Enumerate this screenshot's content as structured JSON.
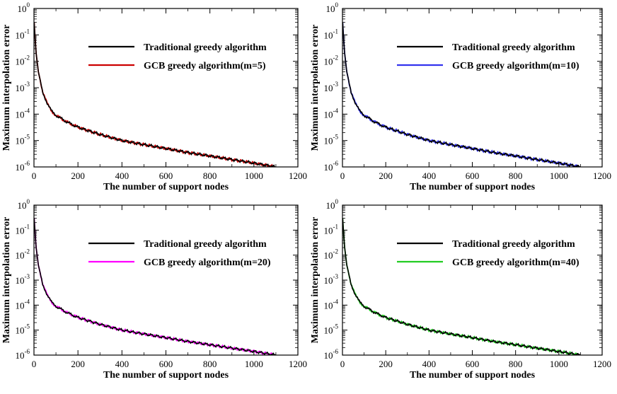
{
  "chart_data": [
    {
      "type": "line",
      "xlabel": "The number of support nodes",
      "ylabel": "Maximum interpolation error",
      "xlim": [
        0,
        1200
      ],
      "ylim": [
        1e-06,
        1
      ],
      "yscale": "log",
      "xticks": [
        0,
        200,
        400,
        600,
        800,
        1000,
        1200
      ],
      "yticks": [
        {
          "base": "10",
          "exp": "0"
        },
        {
          "base": "10",
          "exp": "-1"
        },
        {
          "base": "10",
          "exp": "-2"
        },
        {
          "base": "10",
          "exp": "-3"
        },
        {
          "base": "10",
          "exp": "-4"
        },
        {
          "base": "10",
          "exp": "-5"
        },
        {
          "base": "10",
          "exp": "-6"
        }
      ],
      "legend_position": "top-right",
      "series": [
        {
          "name": "Traditional greedy algorithm",
          "color": "#000000",
          "x": [
            1,
            5,
            10,
            20,
            40,
            60,
            80,
            100,
            150,
            200,
            300,
            400,
            500,
            600,
            700,
            800,
            900,
            1000,
            1100
          ],
          "y": [
            0.3,
            0.08,
            0.02,
            0.004,
            0.0007,
            0.00025,
            0.00013,
            9e-05,
            5e-05,
            3.2e-05,
            1.7e-05,
            1e-05,
            7e-06,
            5e-06,
            3.5e-06,
            2.6e-06,
            1.9e-06,
            1.4e-06,
            1e-06
          ]
        },
        {
          "name": "GCB greedy algorithm(m=5)",
          "color": "#cc0000",
          "x": [
            1,
            5,
            10,
            20,
            40,
            60,
            80,
            100,
            150,
            200,
            300,
            400,
            500,
            600,
            700,
            800,
            900,
            1000,
            1100
          ],
          "y": [
            0.3,
            0.08,
            0.02,
            0.004,
            0.0007,
            0.00025,
            0.00013,
            9e-05,
            5e-05,
            3.2e-05,
            1.7e-05,
            1e-05,
            7e-06,
            5e-06,
            3.5e-06,
            2.6e-06,
            1.9e-06,
            1.4e-06,
            1e-06
          ]
        }
      ]
    },
    {
      "type": "line",
      "xlabel": "The number of support nodes",
      "ylabel": "Maximum interpolation error",
      "xlim": [
        0,
        1200
      ],
      "ylim": [
        1e-06,
        1
      ],
      "yscale": "log",
      "xticks": [
        0,
        200,
        400,
        600,
        800,
        1000,
        1200
      ],
      "yticks": [
        {
          "base": "10",
          "exp": "0"
        },
        {
          "base": "10",
          "exp": "-1"
        },
        {
          "base": "10",
          "exp": "-2"
        },
        {
          "base": "10",
          "exp": "-3"
        },
        {
          "base": "10",
          "exp": "-4"
        },
        {
          "base": "10",
          "exp": "-5"
        },
        {
          "base": "10",
          "exp": "-6"
        }
      ],
      "legend_position": "top-right",
      "series": [
        {
          "name": "Traditional greedy algorithm",
          "color": "#000000",
          "x": [
            1,
            5,
            10,
            20,
            40,
            60,
            80,
            100,
            150,
            200,
            300,
            400,
            500,
            600,
            700,
            800,
            900,
            1000,
            1100
          ],
          "y": [
            0.3,
            0.08,
            0.02,
            0.004,
            0.0007,
            0.00025,
            0.00013,
            9e-05,
            5e-05,
            3.2e-05,
            1.7e-05,
            1e-05,
            7e-06,
            5e-06,
            3.5e-06,
            2.6e-06,
            1.9e-06,
            1.4e-06,
            1e-06
          ]
        },
        {
          "name": "GCB greedy algorithm(m=10)",
          "color": "#3333ee",
          "x": [
            1,
            5,
            10,
            20,
            40,
            60,
            80,
            100,
            150,
            200,
            300,
            400,
            500,
            600,
            700,
            800,
            900,
            1000,
            1100
          ],
          "y": [
            0.3,
            0.08,
            0.02,
            0.004,
            0.0007,
            0.00025,
            0.00013,
            9e-05,
            5e-05,
            3.2e-05,
            1.7e-05,
            1e-05,
            7e-06,
            5e-06,
            3.5e-06,
            2.6e-06,
            1.9e-06,
            1.4e-06,
            1e-06
          ]
        }
      ]
    },
    {
      "type": "line",
      "xlabel": "The number of support nodes",
      "ylabel": "Maximum interpolation error",
      "xlim": [
        0,
        1200
      ],
      "ylim": [
        1e-06,
        1
      ],
      "yscale": "log",
      "xticks": [
        0,
        200,
        400,
        600,
        800,
        1000,
        1200
      ],
      "yticks": [
        {
          "base": "10",
          "exp": "0"
        },
        {
          "base": "10",
          "exp": "-1"
        },
        {
          "base": "10",
          "exp": "-2"
        },
        {
          "base": "10",
          "exp": "-3"
        },
        {
          "base": "10",
          "exp": "-4"
        },
        {
          "base": "10",
          "exp": "-5"
        },
        {
          "base": "10",
          "exp": "-6"
        }
      ],
      "legend_position": "top-right",
      "series": [
        {
          "name": "Traditional greedy algorithm",
          "color": "#000000",
          "x": [
            1,
            5,
            10,
            20,
            40,
            60,
            80,
            100,
            150,
            200,
            300,
            400,
            500,
            600,
            700,
            800,
            900,
            1000,
            1100
          ],
          "y": [
            0.3,
            0.08,
            0.02,
            0.004,
            0.0007,
            0.00025,
            0.00013,
            9e-05,
            5e-05,
            3.2e-05,
            1.7e-05,
            1e-05,
            7e-06,
            5e-06,
            3.5e-06,
            2.6e-06,
            1.9e-06,
            1.4e-06,
            1e-06
          ]
        },
        {
          "name": "GCB greedy algorithm(m=20)",
          "color": "#ff00ff",
          "x": [
            1,
            5,
            10,
            20,
            40,
            60,
            80,
            100,
            150,
            200,
            300,
            400,
            500,
            600,
            700,
            800,
            900,
            1000,
            1100
          ],
          "y": [
            0.3,
            0.08,
            0.02,
            0.004,
            0.0007,
            0.00025,
            0.00013,
            9e-05,
            5e-05,
            3.2e-05,
            1.7e-05,
            1e-05,
            7e-06,
            5e-06,
            3.5e-06,
            2.6e-06,
            1.9e-06,
            1.4e-06,
            1e-06
          ]
        }
      ]
    },
    {
      "type": "line",
      "xlabel": "The number of support nodes",
      "ylabel": "Maximum interpolation error",
      "xlim": [
        0,
        1200
      ],
      "ylim": [
        1e-06,
        1
      ],
      "yscale": "log",
      "xticks": [
        0,
        200,
        400,
        600,
        800,
        1000,
        1200
      ],
      "yticks": [
        {
          "base": "10",
          "exp": "0"
        },
        {
          "base": "10",
          "exp": "-1"
        },
        {
          "base": "10",
          "exp": "-2"
        },
        {
          "base": "10",
          "exp": "-3"
        },
        {
          "base": "10",
          "exp": "-4"
        },
        {
          "base": "10",
          "exp": "-5"
        },
        {
          "base": "10",
          "exp": "-6"
        }
      ],
      "legend_position": "top-right",
      "series": [
        {
          "name": "Traditional greedy algorithm",
          "color": "#000000",
          "x": [
            1,
            5,
            10,
            20,
            40,
            60,
            80,
            100,
            150,
            200,
            300,
            400,
            500,
            600,
            700,
            800,
            900,
            1000,
            1100
          ],
          "y": [
            0.3,
            0.08,
            0.02,
            0.004,
            0.0007,
            0.00025,
            0.00013,
            9e-05,
            5e-05,
            3.2e-05,
            1.7e-05,
            1e-05,
            7e-06,
            5e-06,
            3.5e-06,
            2.6e-06,
            1.9e-06,
            1.4e-06,
            1e-06
          ]
        },
        {
          "name": "GCB greedy algorithm(m=40)",
          "color": "#22cc22",
          "x": [
            1,
            5,
            10,
            20,
            40,
            60,
            80,
            100,
            150,
            200,
            300,
            400,
            500,
            600,
            700,
            800,
            900,
            1000,
            1100
          ],
          "y": [
            0.3,
            0.08,
            0.02,
            0.004,
            0.0007,
            0.00025,
            0.00013,
            9e-05,
            5e-05,
            3.2e-05,
            1.7e-05,
            1e-05,
            7e-06,
            5e-06,
            3.5e-06,
            2.6e-06,
            1.9e-06,
            1.4e-06,
            1e-06
          ]
        }
      ]
    }
  ]
}
